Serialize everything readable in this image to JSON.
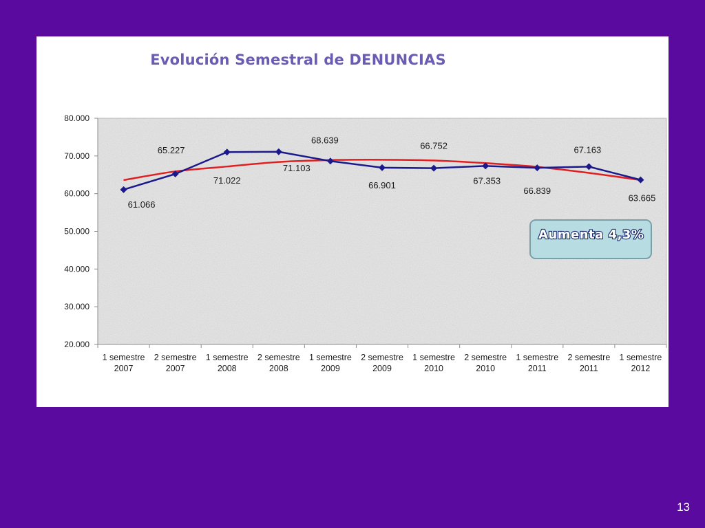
{
  "slide": {
    "page_number": "13"
  },
  "chart_data": {
    "type": "line",
    "title": "Evolución Semestral de DENUNCIAS",
    "categories": [
      [
        "1 semestre",
        "2007"
      ],
      [
        "2 semestre",
        "2007"
      ],
      [
        "1 semestre",
        "2008"
      ],
      [
        "2 semestre",
        "2008"
      ],
      [
        "1 semestre",
        "2009"
      ],
      [
        "2 semestre",
        "2009"
      ],
      [
        "1 semestre",
        "2010"
      ],
      [
        "2 semestre",
        "2010"
      ],
      [
        "1 semestre",
        "2011"
      ],
      [
        "2 semestre",
        "2011"
      ],
      [
        "1 semestre",
        "2012"
      ]
    ],
    "series": [
      {
        "values": [
          61066,
          65227,
          71022,
          71103,
          68639,
          66901,
          66752,
          67353,
          66839,
          67163,
          63665
        ],
        "data_labels": [
          "61.066",
          "65.227",
          "71.022",
          "71.103",
          "68.639",
          "66.901",
          "66.752",
          "67.353",
          "66.839",
          "67.163",
          "63.665"
        ],
        "color": "#1a1a8c",
        "marker": "diamond"
      },
      {
        "type": "polynomial_trendline",
        "values": [
          63600,
          65900,
          67200,
          68400,
          68900,
          69000,
          68800,
          68100,
          67100,
          65500,
          63600
        ],
        "color": "#e02020"
      }
    ],
    "ylim": [
      20000,
      80000
    ],
    "y_ticks": [
      {
        "value": 20000,
        "label": "20.000"
      },
      {
        "value": 30000,
        "label": "30.000"
      },
      {
        "value": 40000,
        "label": "40.000"
      },
      {
        "value": 50000,
        "label": "50.000"
      },
      {
        "value": 60000,
        "label": "60.000"
      },
      {
        "value": 70000,
        "label": "70.000"
      },
      {
        "value": 80000,
        "label": "80.000"
      }
    ],
    "annotation": {
      "text": "Aumenta 4,3%",
      "fill": "#b7dde3",
      "border": "#7a9fa8"
    },
    "plot_background": "#e6e6e6",
    "legend": "none"
  }
}
